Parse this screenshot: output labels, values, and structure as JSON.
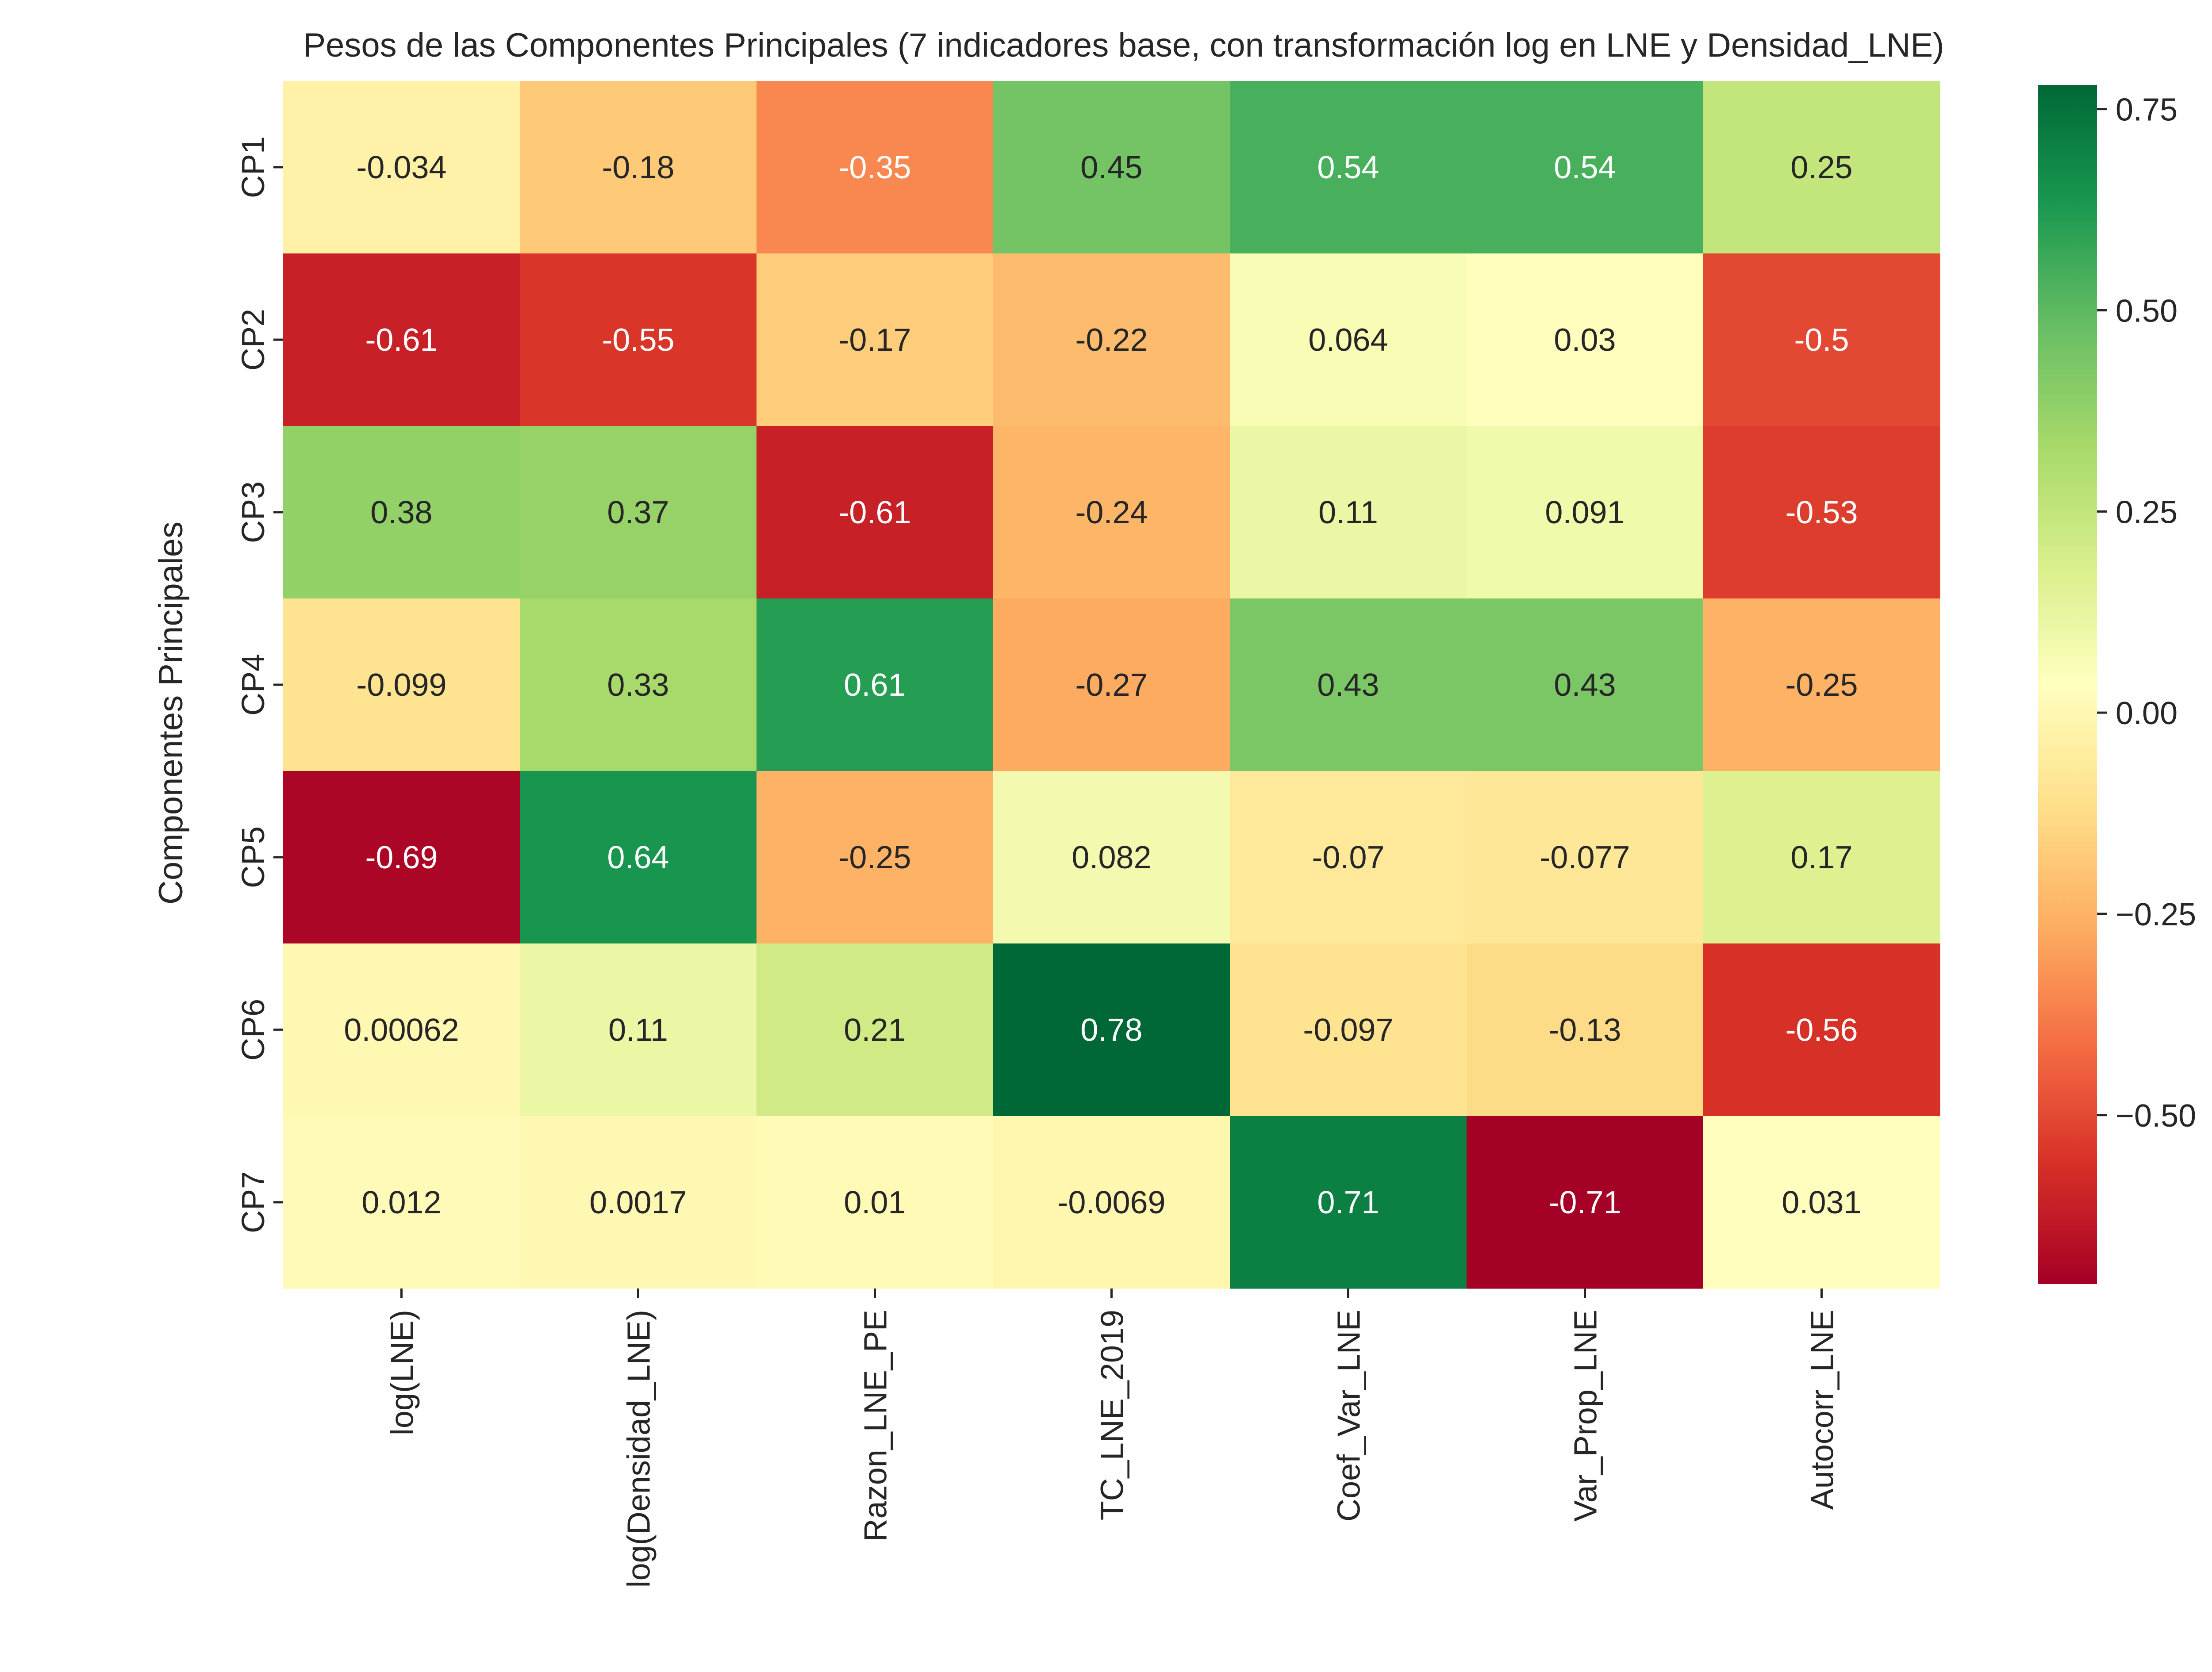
{
  "chart_data": {
    "type": "heatmap",
    "title": "Pesos de las Componentes Principales (7 indicadores base, con transformación log en LNE y Densidad_LNE)",
    "xlabel": "",
    "ylabel": "Componentes Principales",
    "x_categories": [
      "log(LNE)",
      "log(Densidad_LNE)",
      "Razon_LNE_PE",
      "TC_LNE_2019",
      "Coef_Var_LNE",
      "Var_Prop_LNE",
      "Autocorr_LNE"
    ],
    "y_categories": [
      "CP1",
      "CP2",
      "CP3",
      "CP4",
      "CP5",
      "CP6",
      "CP7"
    ],
    "values": [
      [
        -0.034,
        -0.18,
        -0.35,
        0.45,
        0.54,
        0.54,
        0.25
      ],
      [
        -0.61,
        -0.55,
        -0.17,
        -0.22,
        0.064,
        0.03,
        -0.5
      ],
      [
        0.38,
        0.37,
        -0.61,
        -0.24,
        0.11,
        0.091,
        -0.53
      ],
      [
        -0.099,
        0.33,
        0.61,
        -0.27,
        0.43,
        0.43,
        -0.25
      ],
      [
        -0.69,
        0.64,
        -0.25,
        0.082,
        -0.07,
        -0.077,
        0.17
      ],
      [
        0.00062,
        0.11,
        0.21,
        0.78,
        -0.097,
        -0.13,
        -0.56
      ],
      [
        0.012,
        0.0017,
        0.01,
        -0.0069,
        0.71,
        -0.71,
        0.031
      ]
    ],
    "cell_labels": [
      [
        "-0.034",
        "-0.18",
        "-0.35",
        "0.45",
        "0.54",
        "0.54",
        "0.25"
      ],
      [
        "-0.61",
        "-0.55",
        "-0.17",
        "-0.22",
        "0.064",
        "0.03",
        "-0.5"
      ],
      [
        "0.38",
        "0.37",
        "-0.61",
        "-0.24",
        "0.11",
        "0.091",
        "-0.53"
      ],
      [
        "-0.099",
        "0.33",
        "0.61",
        "-0.27",
        "0.43",
        "0.43",
        "-0.25"
      ],
      [
        "-0.69",
        "0.64",
        "-0.25",
        "0.082",
        "-0.07",
        "-0.077",
        "0.17"
      ],
      [
        "0.00062",
        "0.11",
        "0.21",
        "0.78",
        "-0.097",
        "-0.13",
        "-0.56"
      ],
      [
        "0.012",
        "0.0017",
        "0.01",
        "-0.0069",
        "0.71",
        "-0.71",
        "0.031"
      ]
    ],
    "colormap": "RdYlGn",
    "vmin": -0.71,
    "vmax": 0.78,
    "colorbar": {
      "ticks": [
        0.5,
        0.25,
        0.0,
        -0.25,
        -0.5
      ],
      "tick_labels": [
        "0.50",
        "0.25",
        "0.00",
        "−0.25",
        "−0.50"
      ],
      "top_tick": 0.75,
      "top_tick_label": "0.75"
    },
    "grid": false,
    "colors": {
      "text_dark": "#262626",
      "text_light": "#ffffff",
      "tick": "#262626"
    }
  }
}
